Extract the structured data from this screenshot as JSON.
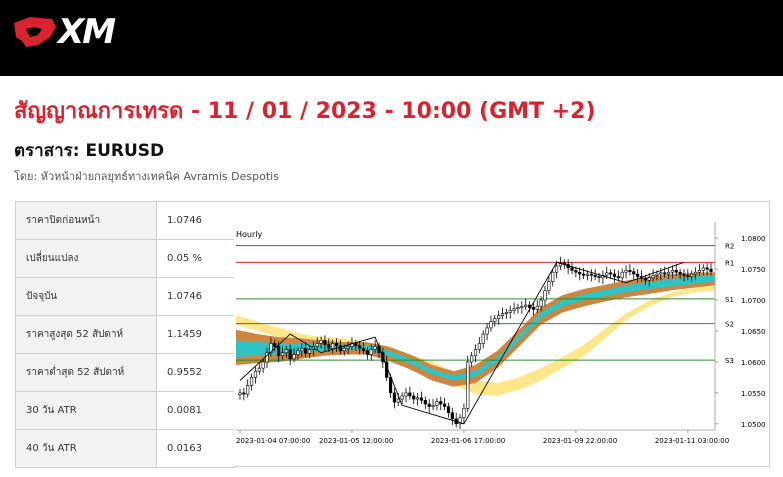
{
  "brand": {
    "name": "XM",
    "logo_icon": "xm-bull-logo-icon",
    "accent": "#d9232e"
  },
  "headline": "สัญญาณการเทรด - 11 / 01 / 2023 - 10:00 (GMT +2)",
  "instrument": "ตราสาร: EURUSD",
  "byline": "โดย: หัวหน้าฝ่ายกลยุทธ์ทางเทคนิค Avramis Despotis",
  "stats": [
    {
      "label": "ราคาปิดก่อนหน้า",
      "value": "1.0746"
    },
    {
      "label": "เปลี่ยนแปลง",
      "value": "0.05 %"
    },
    {
      "label": "ปัจจุบัน",
      "value": "1.0746"
    },
    {
      "label": "ราคาสูงสุด 52 สัปดาห์",
      "value": "1.1459"
    },
    {
      "label": "ราคาต่ำสุด 52 สัปดาห์",
      "value": "0.9552"
    },
    {
      "label": "30 วัน ATR",
      "value": "0.0081"
    },
    {
      "label": "40 วัน ATR",
      "value": "0.0163"
    }
  ],
  "chart_data": {
    "type": "candlestick",
    "timeframe": "Hourly",
    "ylim": [
      1.049,
      1.081
    ],
    "y_ticks": [
      "1.0800",
      "1.0750",
      "1.0700",
      "1.0650",
      "1.0600",
      "1.0550",
      "1.0500"
    ],
    "x_ticks": [
      {
        "label": "2023-01-04 07:00:00",
        "index": 0
      },
      {
        "label": "2023-01-05 12:00:00",
        "index": 29
      },
      {
        "label": "2023-01-06 17:00:00",
        "index": 58
      },
      {
        "label": "2023-01-09 22:00:00",
        "index": 87
      },
      {
        "label": "2023-01-11 03:00:00",
        "index": 116
      }
    ],
    "levels": [
      {
        "name": "R2",
        "value": 1.0788,
        "color": "#d9232e"
      },
      {
        "name": "R1",
        "value": 1.0761,
        "color": "#d9232e"
      },
      {
        "name": "S1",
        "value": 1.0702,
        "color": "#2e8b2e"
      },
      {
        "name": "S2",
        "value": 1.0662,
        "color": "#2e8b2e"
      },
      {
        "name": "S3",
        "value": 1.0603,
        "color": "#2e8b2e"
      }
    ],
    "closes": [
      1.055,
      1.0548,
      1.0562,
      1.0575,
      1.0585,
      1.059,
      1.06,
      1.0615,
      1.063,
      1.0625,
      1.061,
      1.0615,
      1.062,
      1.0605,
      1.0612,
      1.0618,
      1.0622,
      1.0614,
      1.062,
      1.0625,
      1.063,
      1.0635,
      1.0628,
      1.0622,
      1.063,
      1.0626,
      1.0618,
      1.0622,
      1.0625,
      1.063,
      1.0626,
      1.0622,
      1.0618,
      1.0612,
      1.062,
      1.0625,
      1.0615,
      1.06,
      1.0575,
      1.055,
      1.0535,
      1.054,
      1.0545,
      1.055,
      1.0545,
      1.054,
      1.0542,
      1.0538,
      1.0532,
      1.0528,
      1.053,
      1.0536,
      1.0532,
      1.0528,
      1.0518,
      1.0508,
      1.05,
      1.051,
      1.0525,
      1.06,
      1.061,
      1.062,
      1.063,
      1.0645,
      1.0655,
      1.0665,
      1.067,
      1.0675,
      1.0678,
      1.068,
      1.0683,
      1.0686,
      1.0688,
      1.069,
      1.0692,
      1.0688,
      1.0685,
      1.069,
      1.07,
      1.0715,
      1.073,
      1.0745,
      1.0755,
      1.076,
      1.0758,
      1.0752,
      1.0748,
      1.0745,
      1.0742,
      1.074,
      1.0742,
      1.074,
      1.0738,
      1.0736,
      1.074,
      1.0744,
      1.0742,
      1.0738,
      1.0736,
      1.0745,
      1.0748,
      1.0746,
      1.0742,
      1.0738,
      1.0735,
      1.0732,
      1.0736,
      1.074,
      1.0742,
      1.0744,
      1.0742,
      1.0745,
      1.0748,
      1.0745,
      1.0742,
      1.074,
      1.0738,
      1.0742,
      1.0745,
      1.0748,
      1.0752,
      1.075,
      1.0746
    ],
    "series": [
      {
        "role": "outer-lower",
        "color": "#fde68a",
        "values": [
          1.066,
          1.065,
          1.064,
          1.063,
          1.0625,
          1.062,
          1.0615,
          1.06,
          1.059,
          1.0578,
          1.0562,
          1.0548,
          1.0545,
          1.0555,
          1.057,
          1.059,
          1.061,
          1.064,
          1.067,
          1.069,
          1.0705,
          1.0712,
          1.0716
        ]
      },
      {
        "role": "outer-upper",
        "color": "#fde68a",
        "values": [
          1.0675,
          1.0665,
          1.0655,
          1.0645,
          1.064,
          1.0638,
          1.063,
          1.062,
          1.0612,
          1.06,
          1.0585,
          1.057,
          1.0566,
          1.0575,
          1.059,
          1.0608,
          1.0628,
          1.0655,
          1.068,
          1.07,
          1.0712,
          1.072,
          1.0725
        ]
      },
      {
        "role": "mid-lower",
        "color": "#cd853f",
        "values": [
          1.0595,
          1.0598,
          1.06,
          1.0605,
          1.061,
          1.0612,
          1.0612,
          1.0602,
          1.0588,
          1.057,
          1.056,
          1.0566,
          1.059,
          1.0625,
          1.066,
          1.068,
          1.069,
          1.0698,
          1.0705,
          1.071,
          1.0716,
          1.072,
          1.0724
        ]
      },
      {
        "role": "mid-upper",
        "color": "#cd853f",
        "values": [
          1.0652,
          1.0645,
          1.064,
          1.0638,
          1.0634,
          1.0632,
          1.0632,
          1.0625,
          1.0612,
          1.0595,
          1.0585,
          1.0595,
          1.0618,
          1.0652,
          1.0688,
          1.0708,
          1.0718,
          1.0725,
          1.0732,
          1.0738,
          1.0742,
          1.0744,
          1.0745
        ]
      },
      {
        "role": "inner-lower",
        "color": "#2ec4c4",
        "values": [
          1.0608,
          1.061,
          1.0612,
          1.0615,
          1.0618,
          1.062,
          1.062,
          1.061,
          1.0597,
          1.058,
          1.057,
          1.0576,
          1.06,
          1.0635,
          1.067,
          1.069,
          1.07,
          1.0707,
          1.0713,
          1.0718,
          1.0722,
          1.0726,
          1.073
        ]
      },
      {
        "role": "inner-upper",
        "color": "#2ec4c4",
        "values": [
          1.0635,
          1.0632,
          1.063,
          1.063,
          1.0628,
          1.0628,
          1.0628,
          1.0618,
          1.0606,
          1.0588,
          1.0578,
          1.0586,
          1.0609,
          1.0644,
          1.068,
          1.07,
          1.071,
          1.0717,
          1.0724,
          1.073,
          1.0734,
          1.0738,
          1.074
        ]
      }
    ],
    "zigzag": [
      {
        "index": 0,
        "value": 1.057
      },
      {
        "index": 13,
        "value": 1.0645
      },
      {
        "index": 21,
        "value": 1.0615
      },
      {
        "index": 35,
        "value": 1.064
      },
      {
        "index": 42,
        "value": 1.053
      },
      {
        "index": 58,
        "value": 1.05
      },
      {
        "index": 82,
        "value": 1.0761
      },
      {
        "index": 100,
        "value": 1.0728
      },
      {
        "index": 115,
        "value": 1.0761
      }
    ]
  }
}
